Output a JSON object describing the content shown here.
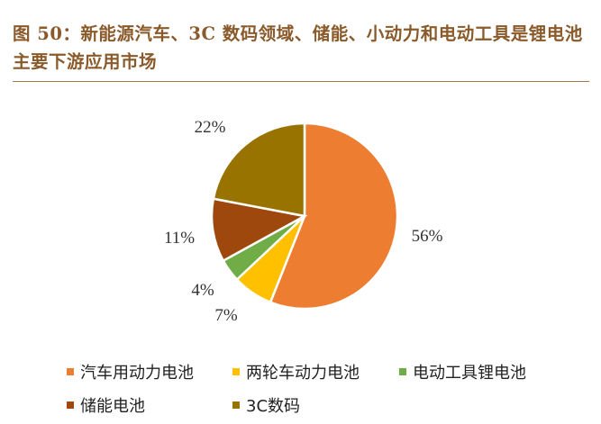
{
  "title": "图 50：新能源汽车、3C 数码领域、储能、小动力和电动工具是锂电池主要下游应用市场",
  "chart_data": {
    "type": "pie",
    "title": "",
    "slices": [
      {
        "label": "汽车用动力电池",
        "value": 56,
        "display": "56%",
        "color": "#ED7D31"
      },
      {
        "label": "两轮车动力电池",
        "value": 7,
        "display": "7%",
        "color": "#FFC000"
      },
      {
        "label": "电动工具锂电池",
        "value": 4,
        "display": "4%",
        "color": "#70AD47"
      },
      {
        "label": "储能电池",
        "value": 11,
        "display": "11%",
        "color": "#9E480E"
      },
      {
        "label": "3C数码",
        "value": 22,
        "display": "22%",
        "color": "#997300"
      }
    ],
    "legend_position": "bottom"
  }
}
